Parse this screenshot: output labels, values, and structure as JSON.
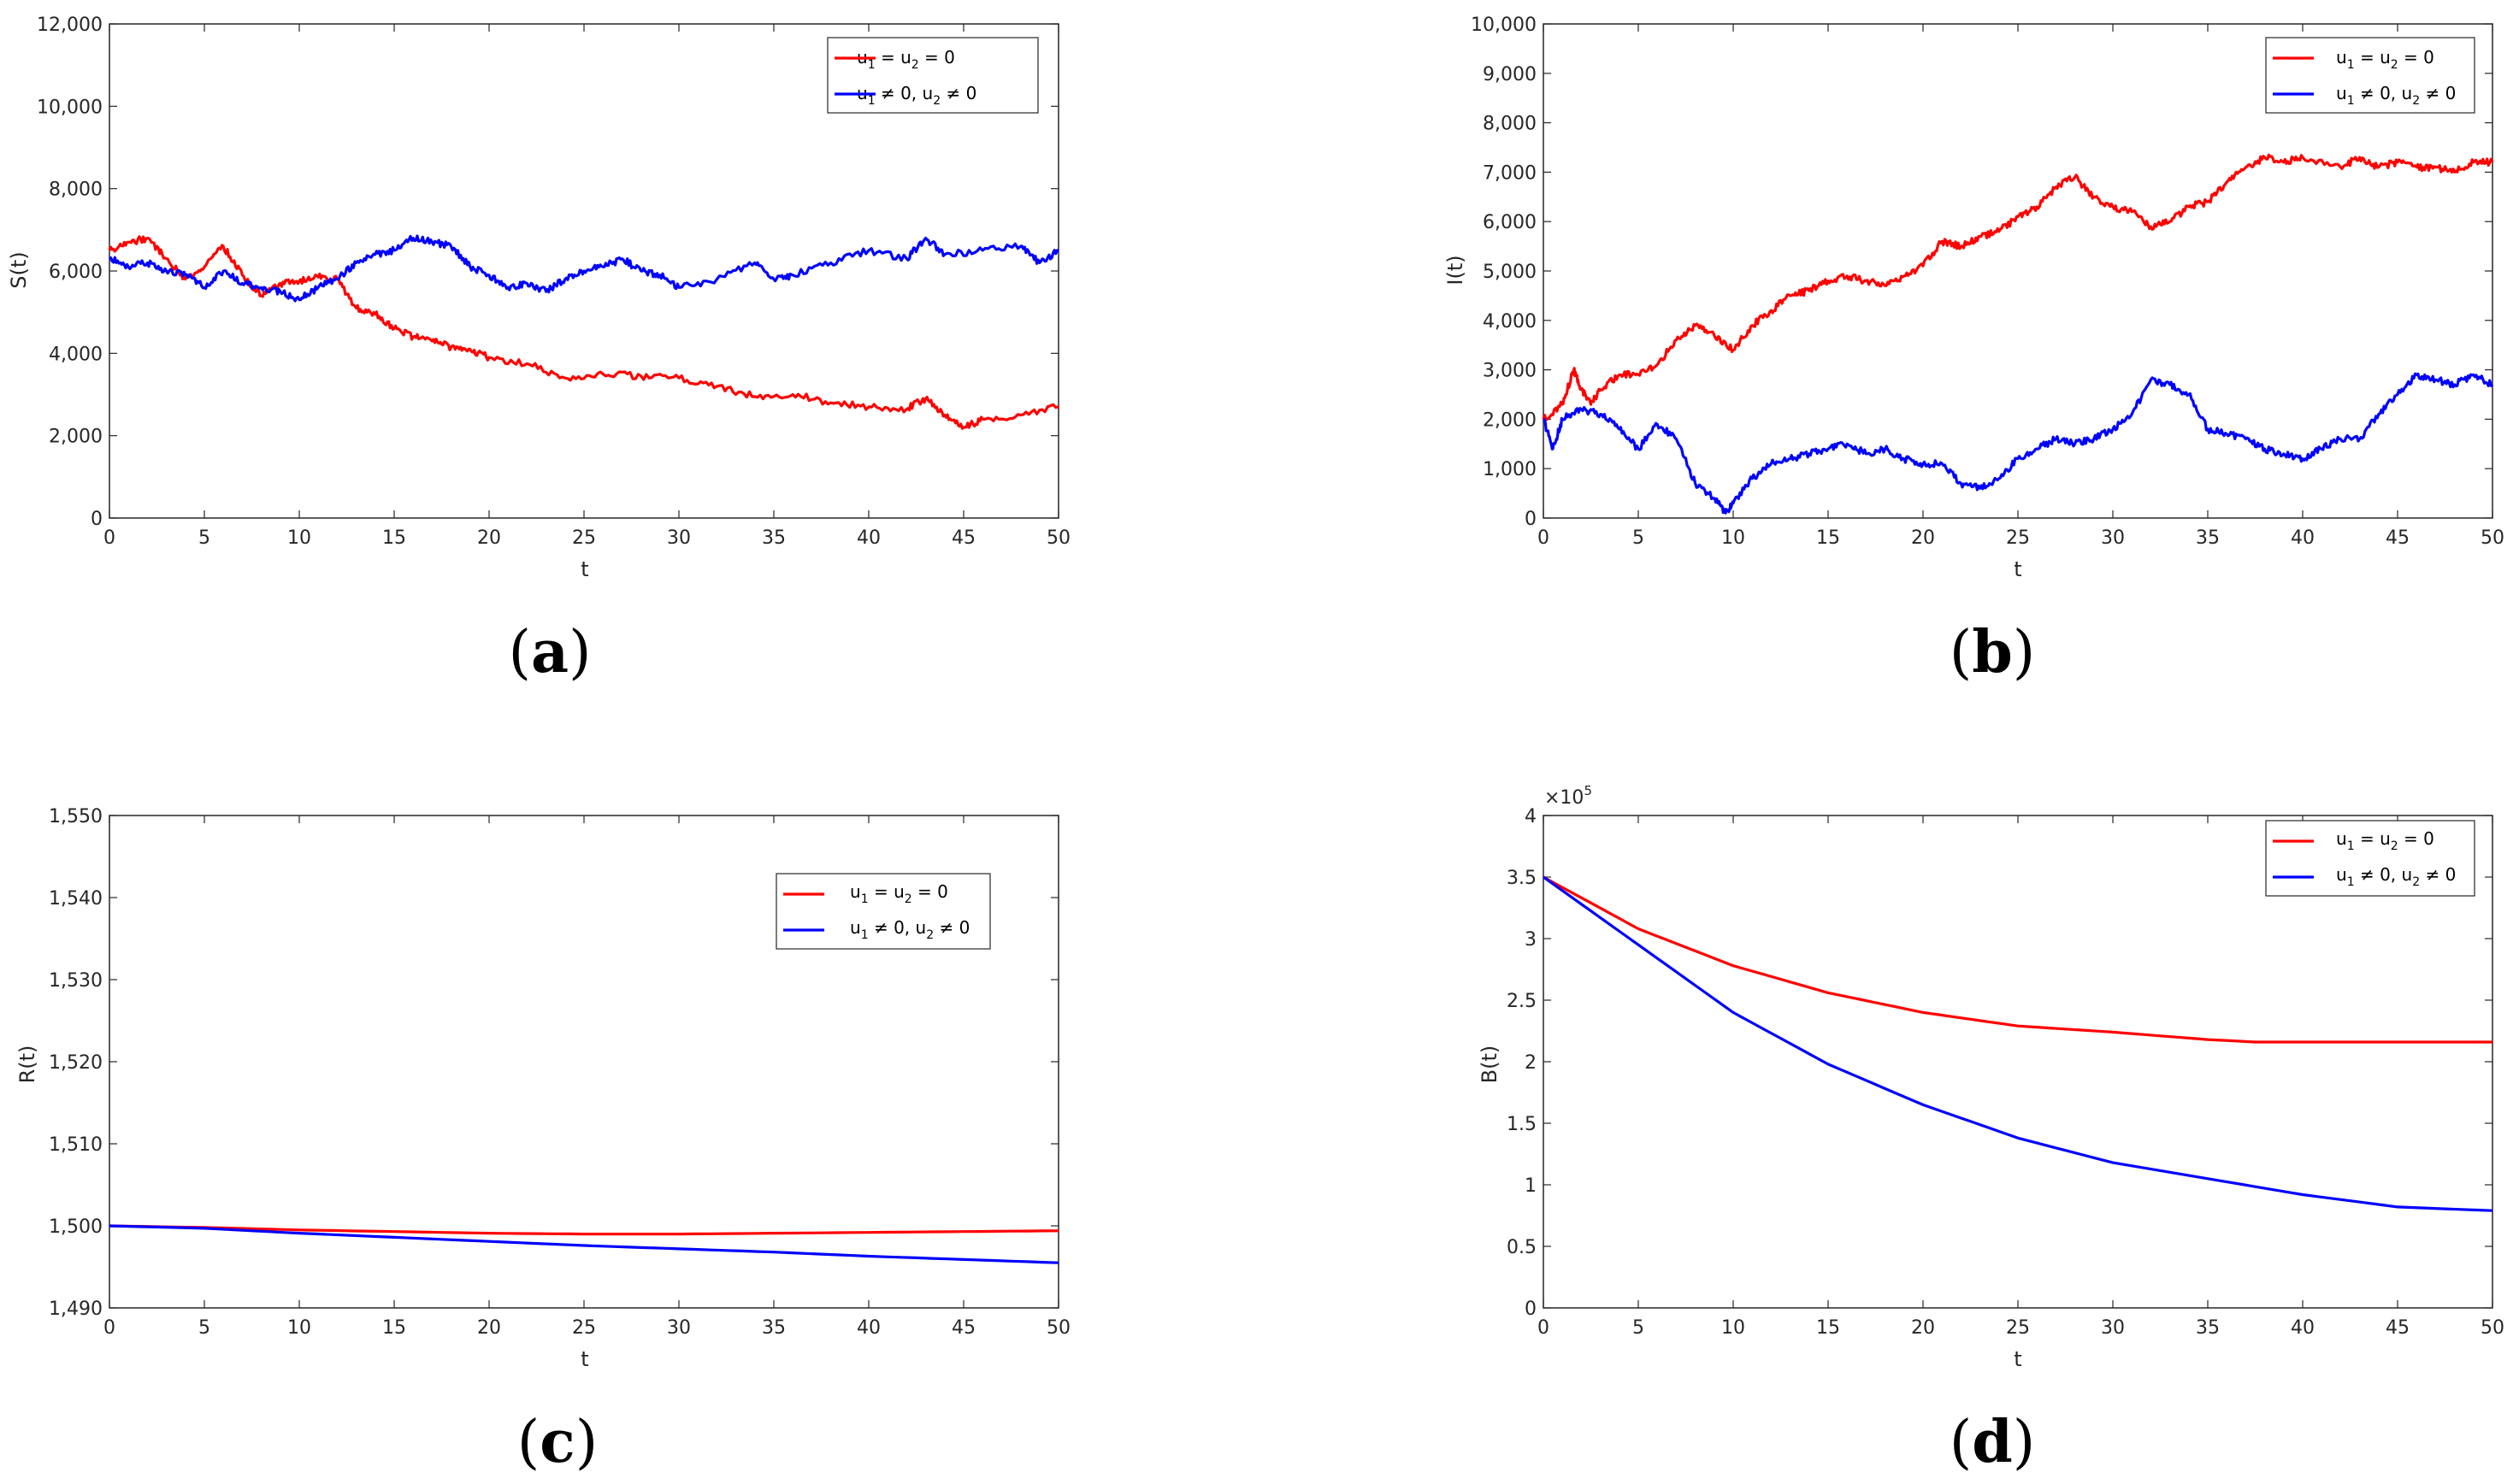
{
  "chart_data": [
    {
      "type": "line",
      "panel": "a",
      "caption": "(a)",
      "xlabel": "t",
      "ylabel": "S(t)",
      "xlim": [
        0,
        50
      ],
      "ylim": [
        0,
        12000
      ],
      "xticks": [
        0,
        5,
        10,
        15,
        20,
        25,
        30,
        35,
        40,
        45,
        50
      ],
      "yticks": [
        0,
        2000,
        4000,
        6000,
        8000,
        10000,
        12000
      ],
      "ytick_labels": [
        "0",
        "2,000",
        "4,000",
        "6,000",
        "8,000",
        "10,000",
        "12,000"
      ],
      "legend_position": "top-right",
      "series": [
        {
          "name": "u1 = u2 = 0",
          "color": "#ff0000",
          "x": [
            0,
            1,
            2,
            3,
            4,
            5,
            6,
            7,
            8,
            9,
            10,
            11,
            12,
            13,
            14,
            15,
            16,
            17,
            18,
            19,
            20,
            22,
            24,
            26,
            28,
            30,
            32,
            34,
            36,
            38,
            40,
            42,
            43,
            44,
            45,
            46,
            48,
            50
          ],
          "values": [
            6500,
            6700,
            6800,
            6300,
            5800,
            6100,
            6600,
            5900,
            5400,
            5700,
            5750,
            5850,
            5800,
            5100,
            4950,
            4600,
            4400,
            4300,
            4150,
            4100,
            3900,
            3750,
            3400,
            3500,
            3450,
            3400,
            3200,
            2950,
            3000,
            2800,
            2700,
            2650,
            2900,
            2500,
            2200,
            2400,
            2500,
            2700
          ]
        },
        {
          "name": "u1 ≠ 0, u2 ≠ 0",
          "color": "#0000ff",
          "x": [
            0,
            1,
            2,
            3,
            4,
            5,
            6,
            7,
            8,
            9,
            10,
            11,
            12,
            13,
            14,
            15,
            16,
            17,
            18,
            19,
            20,
            21,
            22,
            23,
            24,
            25,
            26,
            27,
            28,
            29,
            30,
            32,
            34,
            35,
            36,
            38,
            40,
            42,
            43,
            44,
            46,
            48,
            49,
            50
          ],
          "values": [
            6300,
            6100,
            6200,
            6000,
            5900,
            5600,
            6000,
            5700,
            5600,
            5500,
            5300,
            5600,
            5800,
            6200,
            6400,
            6500,
            6800,
            6700,
            6600,
            6100,
            5900,
            5600,
            5700,
            5500,
            5800,
            6000,
            6100,
            6300,
            6000,
            5900,
            5600,
            5800,
            6200,
            5800,
            5900,
            6200,
            6500,
            6300,
            6800,
            6400,
            6500,
            6600,
            6200,
            6500
          ]
        }
      ]
    },
    {
      "type": "line",
      "panel": "b",
      "caption": "(b)",
      "xlabel": "t",
      "ylabel": "I(t)",
      "xlim": [
        0,
        50
      ],
      "ylim": [
        0,
        10000
      ],
      "xticks": [
        0,
        5,
        10,
        15,
        20,
        25,
        30,
        35,
        40,
        45,
        50
      ],
      "yticks": [
        0,
        1000,
        2000,
        3000,
        4000,
        5000,
        6000,
        7000,
        8000,
        9000,
        10000
      ],
      "ytick_labels": [
        "0",
        "1,000",
        "2,000",
        "3,000",
        "4,000",
        "5,000",
        "6,000",
        "7,000",
        "8,000",
        "9,000",
        "10,000"
      ],
      "legend_position": "top-right",
      "series": [
        {
          "name": "u1 = u2 = 0",
          "color": "#ff0000",
          "x": [
            0,
            1,
            1.6,
            2,
            2.5,
            3,
            4,
            5,
            6,
            7,
            8,
            9,
            10,
            11,
            12,
            13,
            14,
            15,
            16,
            17,
            18,
            19,
            20,
            21,
            22,
            23,
            24,
            25,
            26,
            27,
            28,
            29,
            30,
            31,
            32,
            33,
            34,
            35,
            36,
            37,
            38,
            39,
            40,
            42,
            43,
            44,
            45,
            46,
            47,
            48,
            49,
            50
          ],
          "values": [
            2000,
            2300,
            3000,
            2600,
            2300,
            2600,
            2900,
            2900,
            3100,
            3600,
            3900,
            3700,
            3400,
            3900,
            4200,
            4500,
            4600,
            4800,
            4900,
            4800,
            4700,
            4900,
            5100,
            5600,
            5500,
            5700,
            5800,
            6100,
            6300,
            6700,
            6900,
            6500,
            6300,
            6200,
            5900,
            6000,
            6300,
            6400,
            6800,
            7100,
            7300,
            7200,
            7300,
            7100,
            7300,
            7100,
            7200,
            7100,
            7100,
            7000,
            7200,
            7200
          ]
        },
        {
          "name": "u1 ≠ 0, u2 ≠ 0",
          "color": "#0000ff",
          "x": [
            0,
            0.5,
            1,
            2,
            3,
            4,
            5,
            6,
            7,
            8,
            9,
            9.6,
            10,
            11,
            12,
            13,
            14,
            15,
            16,
            17,
            18,
            19,
            20,
            21,
            22,
            23,
            24,
            25,
            26,
            27,
            28,
            29,
            30,
            31,
            32,
            33,
            34,
            35,
            36,
            37,
            38,
            39,
            40,
            41,
            42,
            43,
            44,
            45,
            46,
            47,
            48,
            49,
            50
          ],
          "values": [
            2000,
            1400,
            2000,
            2200,
            2100,
            1800,
            1400,
            1900,
            1600,
            700,
            400,
            100,
            300,
            800,
            1100,
            1200,
            1300,
            1400,
            1500,
            1300,
            1400,
            1200,
            1100,
            1100,
            700,
            600,
            800,
            1200,
            1400,
            1600,
            1500,
            1600,
            1800,
            2100,
            2800,
            2700,
            2500,
            1800,
            1700,
            1600,
            1400,
            1300,
            1200,
            1400,
            1600,
            1600,
            2100,
            2500,
            2900,
            2800,
            2700,
            2900,
            2700
          ]
        }
      ]
    },
    {
      "type": "line",
      "panel": "c",
      "caption": "(c)",
      "xlabel": "t",
      "ylabel": "R(t)",
      "xlim": [
        0,
        50
      ],
      "ylim": [
        1490,
        1550
      ],
      "xticks": [
        0,
        5,
        10,
        15,
        20,
        25,
        30,
        35,
        40,
        45,
        50
      ],
      "yticks": [
        1490,
        1500,
        1510,
        1520,
        1530,
        1540,
        1550
      ],
      "ytick_labels": [
        "1,490",
        "1,500",
        "1,510",
        "1,520",
        "1,530",
        "1,540",
        "1,550"
      ],
      "legend_position": "top-right",
      "series": [
        {
          "name": "u1 = u2 = 0",
          "color": "#ff0000",
          "x": [
            0,
            5,
            10,
            15,
            20,
            25,
            30,
            35,
            40,
            45,
            50
          ],
          "values": [
            1500,
            1499.8,
            1499.5,
            1499.3,
            1499.1,
            1499.0,
            1499.0,
            1499.1,
            1499.2,
            1499.3,
            1499.4
          ]
        },
        {
          "name": "u1 ≠ 0, u2 ≠ 0",
          "color": "#0000ff",
          "x": [
            0,
            5,
            10,
            15,
            20,
            25,
            30,
            35,
            40,
            45,
            50
          ],
          "values": [
            1500,
            1499.7,
            1499.1,
            1498.6,
            1498.1,
            1497.6,
            1497.2,
            1496.8,
            1496.3,
            1495.9,
            1495.5
          ]
        }
      ]
    },
    {
      "type": "line",
      "panel": "d",
      "caption": "(d)",
      "xlabel": "t",
      "ylabel": "B(t)",
      "y_exponent": "×10",
      "y_exponent_power": "5",
      "xlim": [
        0,
        50
      ],
      "ylim": [
        0,
        4
      ],
      "xticks": [
        0,
        5,
        10,
        15,
        20,
        25,
        30,
        35,
        40,
        45,
        50
      ],
      "yticks": [
        0,
        0.5,
        1,
        1.5,
        2,
        2.5,
        3,
        3.5,
        4
      ],
      "ytick_labels": [
        "0",
        "0.5",
        "1",
        "1.5",
        "2",
        "2.5",
        "3",
        "3.5",
        "4"
      ],
      "legend_position": "top-right",
      "series": [
        {
          "name": "u1 = u2 = 0",
          "color": "#ff0000",
          "x": [
            0,
            5,
            10,
            15,
            20,
            25,
            30,
            35,
            37.5,
            40,
            45,
            50
          ],
          "values": [
            3.5,
            3.08,
            2.78,
            2.56,
            2.4,
            2.29,
            2.24,
            2.18,
            2.16,
            2.16,
            2.16,
            2.16
          ]
        },
        {
          "name": "u1 ≠ 0, u2 ≠ 0",
          "color": "#0000ff",
          "x": [
            0,
            5,
            10,
            15,
            20,
            25,
            30,
            35,
            40,
            45,
            50
          ],
          "values": [
            3.5,
            2.95,
            2.4,
            1.98,
            1.65,
            1.38,
            1.18,
            1.05,
            0.92,
            0.82,
            0.79
          ]
        }
      ]
    }
  ]
}
